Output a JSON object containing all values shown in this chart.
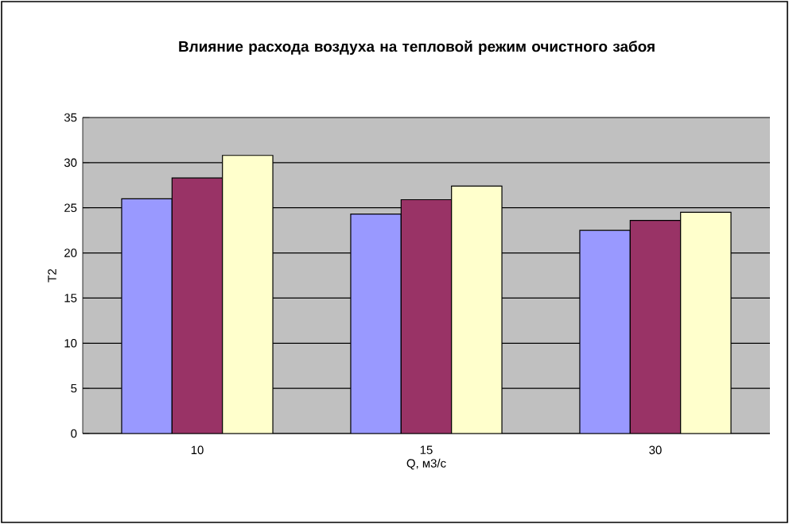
{
  "chart_data": {
    "type": "bar",
    "title": "Влияние расхода воздуха на тепловой режим очистного забоя",
    "xlabel": "Q, м3/с",
    "ylabel": "T2",
    "categories": [
      "10",
      "15",
      "30"
    ],
    "series": [
      {
        "color": "#9999ff",
        "values": [
          26.0,
          24.3,
          22.5
        ]
      },
      {
        "color": "#993366",
        "values": [
          28.3,
          25.9,
          23.6
        ]
      },
      {
        "color": "#ffffcc",
        "values": [
          30.8,
          27.4,
          24.5
        ]
      }
    ],
    "ylim": [
      0,
      35
    ],
    "yticks": [
      0,
      5,
      10,
      15,
      20,
      25,
      30,
      35
    ],
    "grid": "y"
  }
}
